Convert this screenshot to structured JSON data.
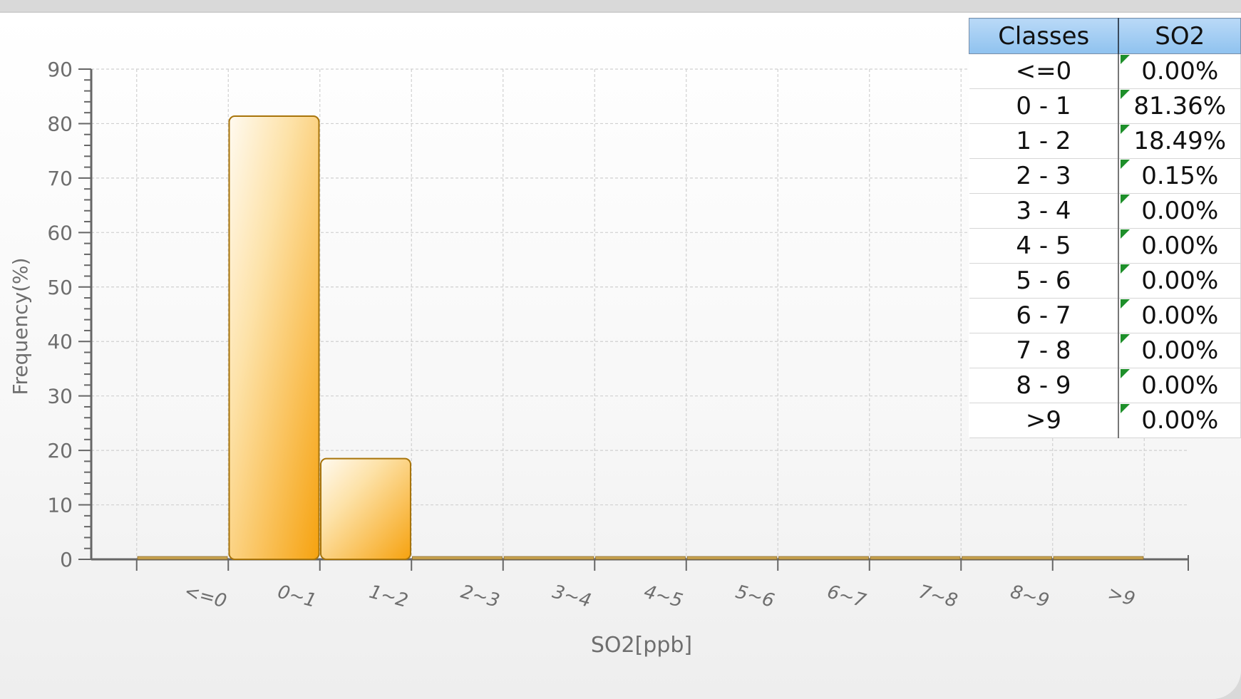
{
  "chart_data": {
    "type": "bar",
    "title": "",
    "xlabel": "SO2[ppb]",
    "ylabel": "Frequency(%)",
    "ylim": [
      0,
      90
    ],
    "yticks": [
      0,
      10,
      20,
      30,
      40,
      50,
      60,
      70,
      80,
      90
    ],
    "categories": [
      "<=0",
      "0~1",
      "1~2",
      "2~3",
      "3~4",
      "4~5",
      "5~6",
      "6~7",
      "7~8",
      "8~9",
      ">9"
    ],
    "values": [
      0,
      81.36,
      18.49,
      0.15,
      0,
      0,
      0,
      0,
      0,
      0,
      0
    ],
    "grid": true,
    "bar_color": "#f6a81a"
  },
  "table": {
    "headers": [
      "Classes",
      "SO2"
    ],
    "rows": [
      [
        "<=0",
        "0.00%"
      ],
      [
        "0 - 1",
        "81.36%"
      ],
      [
        "1 - 2",
        "18.49%"
      ],
      [
        "2 - 3",
        "0.15%"
      ],
      [
        "3 - 4",
        "0.00%"
      ],
      [
        "4 - 5",
        "0.00%"
      ],
      [
        "5 - 6",
        "0.00%"
      ],
      [
        "6 - 7",
        "0.00%"
      ],
      [
        "7 - 8",
        "0.00%"
      ],
      [
        "8 - 9",
        "0.00%"
      ],
      [
        ">9",
        "0.00%"
      ]
    ]
  }
}
